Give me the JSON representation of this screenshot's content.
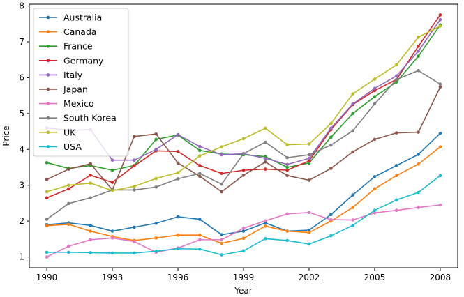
{
  "chart_data": {
    "type": "line",
    "xlabel": "Year",
    "ylabel": "Price",
    "xlim": [
      1989.2,
      2008.8
    ],
    "ylim": [
      0.7,
      8.05
    ],
    "xticks": [
      1990,
      1993,
      1996,
      1999,
      2002,
      2005,
      2008
    ],
    "yticks": [
      1,
      2,
      3,
      4,
      5,
      6,
      7,
      8
    ],
    "legend_position": "upper-left",
    "grid": false,
    "x": [
      1990,
      1991,
      1992,
      1993,
      1994,
      1995,
      1996,
      1997,
      1998,
      1999,
      2000,
      2001,
      2002,
      2003,
      2004,
      2005,
      2006,
      2007,
      2008
    ],
    "series": [
      {
        "name": "Australia",
        "color": "#1f77b4",
        "values": [
          1.9,
          1.95,
          1.88,
          1.72,
          1.83,
          1.94,
          2.12,
          2.05,
          1.62,
          1.72,
          1.95,
          1.72,
          1.75,
          2.18,
          2.73,
          3.24,
          3.55,
          3.86,
          4.45
        ]
      },
      {
        "name": "Canada",
        "color": "#ff7f0e",
        "values": [
          1.87,
          1.91,
          1.72,
          1.57,
          1.46,
          1.53,
          1.61,
          1.61,
          1.38,
          1.52,
          1.86,
          1.72,
          1.68,
          2.0,
          2.38,
          2.9,
          3.27,
          3.59,
          4.07
        ]
      },
      {
        "name": "France",
        "color": "#2ca02c",
        "values": [
          3.63,
          3.47,
          3.55,
          3.42,
          3.55,
          4.28,
          4.4,
          3.97,
          3.87,
          3.85,
          3.8,
          3.5,
          3.62,
          4.34,
          5.0,
          5.47,
          5.88,
          6.6,
          7.47
        ]
      },
      {
        "name": "Germany",
        "color": "#d62728",
        "values": [
          2.65,
          2.9,
          3.28,
          3.08,
          3.54,
          3.96,
          3.94,
          3.55,
          3.33,
          3.42,
          3.45,
          3.42,
          3.68,
          4.55,
          5.25,
          5.64,
          5.95,
          6.88,
          7.75
        ]
      },
      {
        "name": "Italy",
        "color": "#9467bd",
        "values": [
          4.6,
          4.53,
          4.55,
          3.7,
          3.7,
          4.0,
          4.41,
          4.08,
          3.85,
          3.88,
          3.75,
          3.58,
          3.75,
          4.59,
          5.27,
          5.7,
          6.05,
          6.74,
          7.62
        ]
      },
      {
        "name": "Japan",
        "color": "#8c564b",
        "values": [
          3.16,
          3.45,
          3.6,
          2.87,
          4.36,
          4.43,
          3.62,
          3.25,
          2.82,
          3.28,
          3.65,
          3.27,
          3.14,
          3.47,
          3.93,
          4.28,
          4.46,
          4.48,
          5.74
        ]
      },
      {
        "name": "Mexico",
        "color": "#e377c2",
        "values": [
          1.0,
          1.3,
          1.48,
          1.53,
          1.43,
          1.13,
          1.25,
          1.48,
          1.48,
          1.8,
          2.01,
          2.2,
          2.24,
          2.04,
          2.03,
          2.23,
          2.3,
          2.38,
          2.45
        ]
      },
      {
        "name": "South Korea",
        "color": "#7f7f7f",
        "values": [
          2.05,
          2.49,
          2.65,
          2.87,
          2.87,
          2.95,
          3.18,
          3.33,
          3.03,
          3.88,
          4.2,
          3.77,
          3.85,
          4.12,
          4.52,
          5.27,
          5.95,
          6.2,
          5.82
        ]
      },
      {
        "name": "UK",
        "color": "#bcbd22",
        "values": [
          2.82,
          3.0,
          3.06,
          2.85,
          2.97,
          3.19,
          3.35,
          3.82,
          4.07,
          4.3,
          4.59,
          4.13,
          4.15,
          4.72,
          5.55,
          5.96,
          6.36,
          7.13,
          7.44
        ]
      },
      {
        "name": "USA",
        "color": "#17becf",
        "values": [
          1.13,
          1.13,
          1.12,
          1.11,
          1.11,
          1.16,
          1.23,
          1.22,
          1.06,
          1.17,
          1.51,
          1.46,
          1.36,
          1.59,
          1.88,
          2.3,
          2.59,
          2.8,
          3.27
        ]
      }
    ]
  }
}
